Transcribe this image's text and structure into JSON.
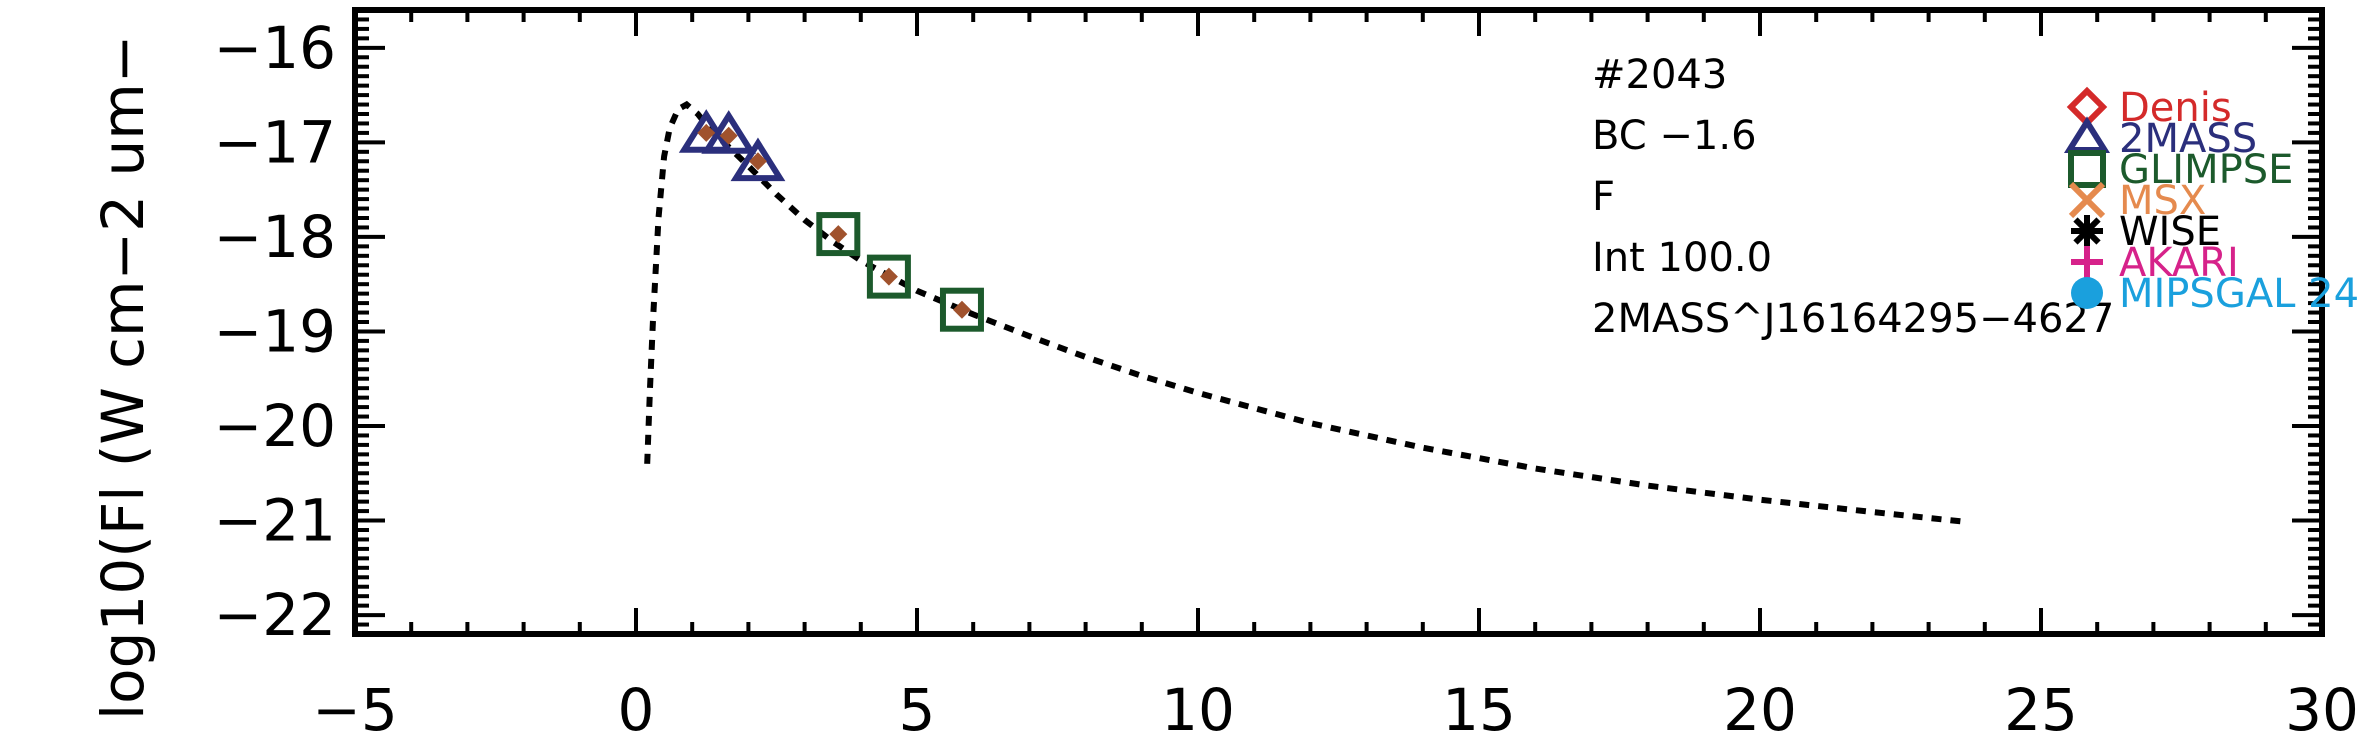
{
  "chart_data": {
    "type": "scatter",
    "title": "",
    "xlabel": "",
    "ylabel": "log10(Fl (W cm−2 um−",
    "xlim": [
      -5,
      30
    ],
    "ylim": [
      -22.2,
      -15.6
    ],
    "x_ticks": [
      -5,
      0,
      5,
      10,
      15,
      20,
      25,
      30
    ],
    "x_tick_labels": [
      "−5",
      "0",
      "5",
      "10",
      "15",
      "20",
      "25",
      "30"
    ],
    "y_ticks": [
      -16,
      -17,
      -18,
      -19,
      -20,
      -21,
      -22
    ],
    "y_tick_labels": [
      "−16",
      "−17",
      "−18",
      "−19",
      "−20",
      "−21",
      "−22"
    ],
    "annotations": [
      "#2043",
      "BC −1.6",
      "F",
      "Int 100.0",
      "2MASS^J16164295−4627"
    ],
    "legend": [
      {
        "name": "Denis",
        "marker": "diamond",
        "color": "#d42a2a"
      },
      {
        "name": "2MASS",
        "marker": "triangle",
        "color": "#2b2f7c"
      },
      {
        "name": "GLIMPSE",
        "marker": "square",
        "color": "#1c5a2c"
      },
      {
        "name": "MSX",
        "marker": "x",
        "color": "#e58a4e"
      },
      {
        "name": "WISE",
        "marker": "asterisk",
        "color": "#000000"
      },
      {
        "name": "AKARI",
        "marker": "plus",
        "color": "#d6228a"
      },
      {
        "name": "MIPSGAL 24",
        "marker": "circle",
        "color": "#1aa0dd"
      }
    ],
    "legend_position": "right",
    "series": [
      {
        "name": "2MASS",
        "marker": "triangle",
        "color": "#2b2f7c",
        "x": [
          1.25,
          1.65,
          2.17
        ],
        "y": [
          -16.92,
          -16.93,
          -17.22
        ]
      },
      {
        "name": "GLIMPSE",
        "marker": "square",
        "color": "#1c5a2c",
        "x": [
          3.6,
          4.5,
          5.8
        ],
        "y": [
          -17.97,
          -18.42,
          -18.77
        ]
      },
      {
        "marker": "diamond-filled",
        "color": "#a0522d",
        "x": [
          1.25,
          1.65,
          2.17,
          3.6,
          4.5,
          5.8
        ],
        "y": [
          -16.9,
          -16.93,
          -17.2,
          -17.97,
          -18.42,
          -18.77
        ]
      },
      {
        "type": "line",
        "style": "dotted",
        "color": "#000000",
        "x": [
          0.2,
          0.25,
          0.3,
          0.4,
          0.5,
          0.6,
          0.75,
          0.9,
          1.1,
          1.3,
          1.6,
          2.0,
          2.5,
          3.0,
          3.5,
          4.0,
          5.0,
          6.0,
          7.0,
          8.0,
          9.0,
          10.0,
          12.0,
          14.0,
          16.0,
          18.0,
          20.0,
          22.0,
          23.6
        ],
        "y": [
          -20.4,
          -19.6,
          -18.9,
          -17.8,
          -17.15,
          -16.85,
          -16.65,
          -16.6,
          -16.7,
          -16.85,
          -17.02,
          -17.25,
          -17.55,
          -17.82,
          -18.05,
          -18.25,
          -18.57,
          -18.82,
          -19.05,
          -19.27,
          -19.47,
          -19.65,
          -19.97,
          -20.23,
          -20.45,
          -20.63,
          -20.78,
          -20.91,
          -21.01
        ]
      }
    ]
  }
}
